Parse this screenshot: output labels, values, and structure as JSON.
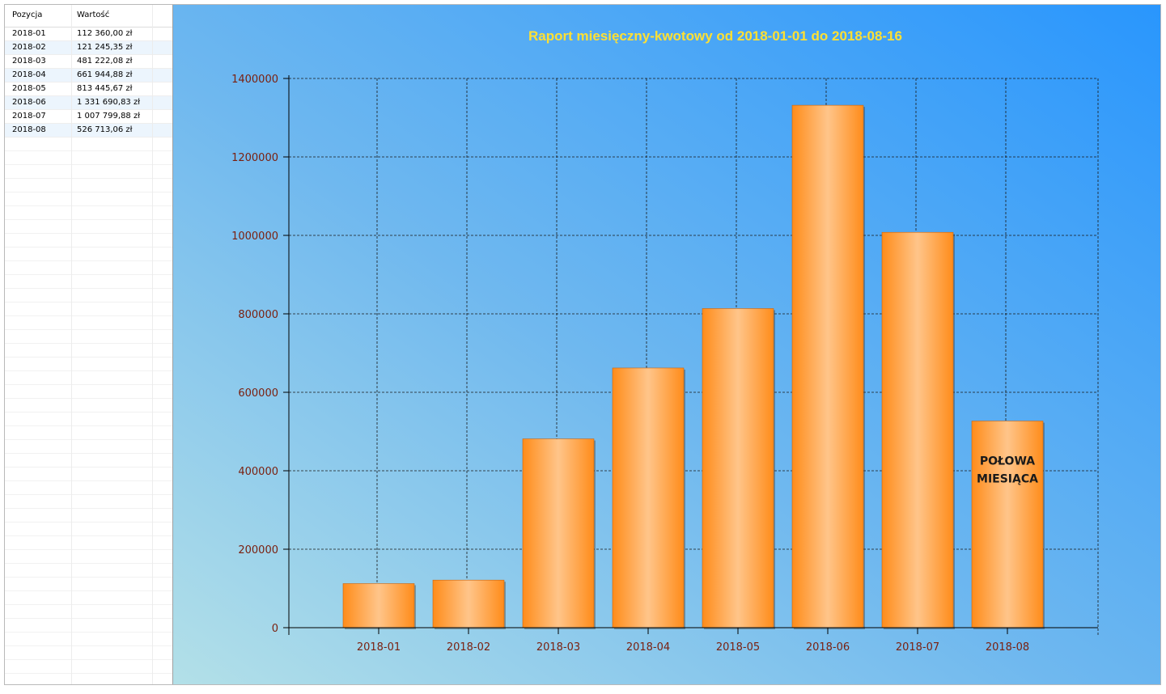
{
  "table": {
    "headers": [
      "Pozycja",
      "Wartość"
    ],
    "rows": [
      [
        "2018-01",
        "112 360,00 zł"
      ],
      [
        "2018-02",
        "121 245,35 zł"
      ],
      [
        "2018-03",
        "481 222,08 zł"
      ],
      [
        "2018-04",
        "661 944,88 zł"
      ],
      [
        "2018-05",
        "813 445,67 zł"
      ],
      [
        "2018-06",
        "1 331 690,83 zł"
      ],
      [
        "2018-07",
        "1 007 799,88 zł"
      ],
      [
        "2018-08",
        "526 713,06 zł"
      ]
    ]
  },
  "chart_data": {
    "type": "bar",
    "title": "Raport miesięczny-kwotowy od 2018-01-01 do 2018-08-16",
    "xlabel": "",
    "ylabel": "",
    "categories": [
      "2018-01",
      "2018-02",
      "2018-03",
      "2018-04",
      "2018-05",
      "2018-06",
      "2018-07",
      "2018-08"
    ],
    "values": [
      112360.0,
      121245.35,
      481222.08,
      661944.88,
      813445.67,
      1331690.83,
      1007799.88,
      526713.06
    ],
    "ylim": [
      0,
      1400000
    ],
    "yticks": [
      "0",
      "200000",
      "400000",
      "600000",
      "800000",
      "1000000",
      "1200000",
      "1400000"
    ],
    "grid": true,
    "annotation": {
      "category": "2018-08",
      "lines": [
        "POŁOWA",
        "MIESIĄCA"
      ]
    },
    "colors": {
      "bar": "#ff8c1a",
      "bar_highlight": "#ffc58a",
      "title": "#ffe033",
      "axis_text": "#7a1f0e"
    }
  }
}
